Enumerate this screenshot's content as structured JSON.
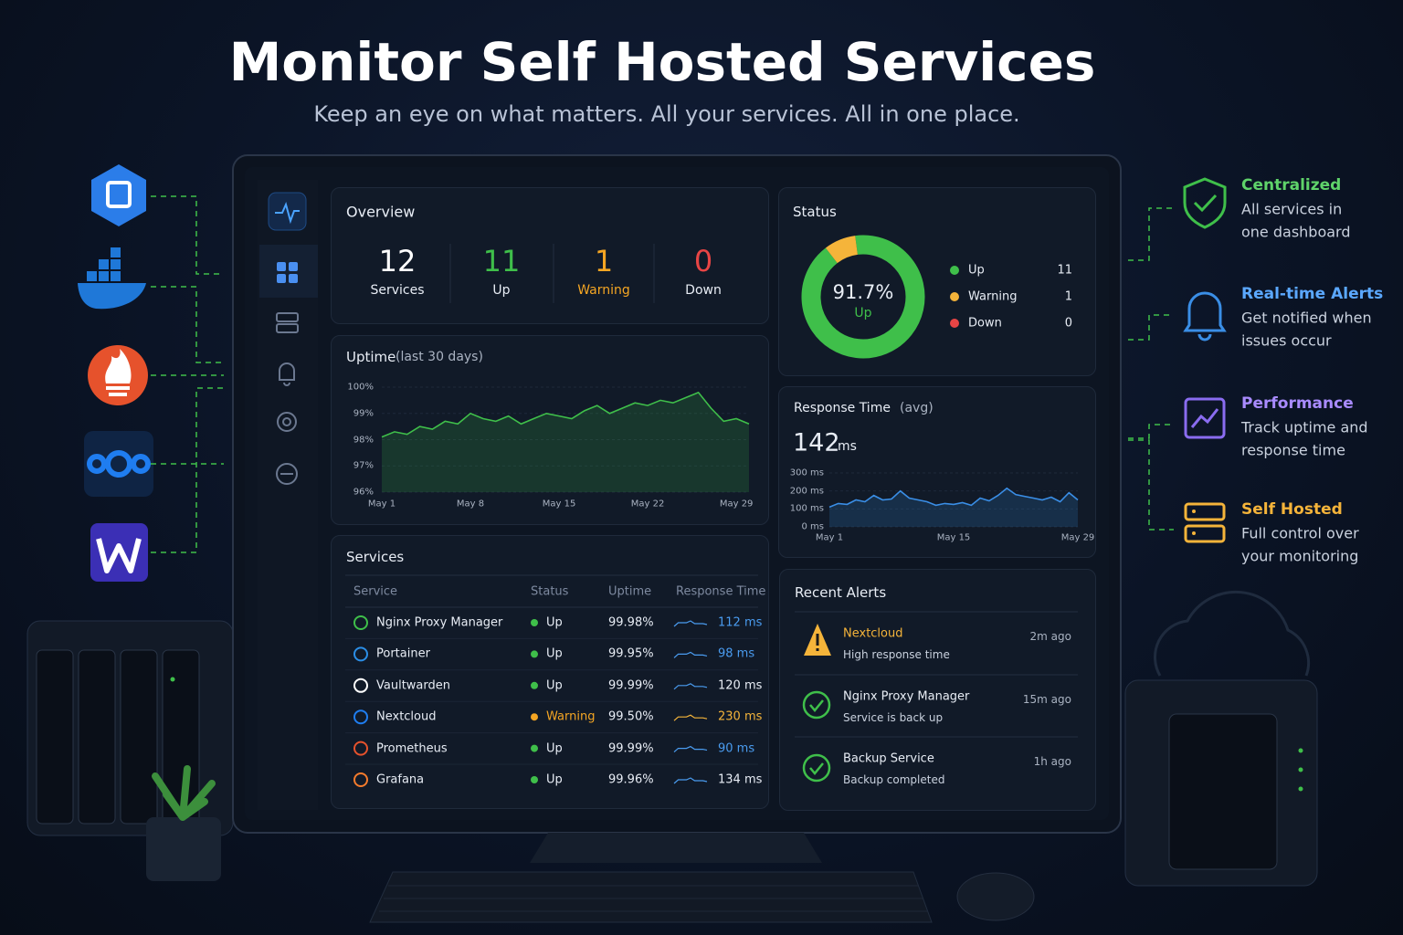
{
  "header": {
    "title": "Monitor Self Hosted Services",
    "subtitle": "Keep an eye on what matters. All your services. All in one place."
  },
  "features": [
    {
      "title": "Centralized",
      "line1": "All services in",
      "line2": "one dashboard",
      "color": "#5fd36a"
    },
    {
      "title": "Real-time Alerts",
      "line1": "Get notified when",
      "line2": "issues occur",
      "color": "#5ba8ff"
    },
    {
      "title": "Performance",
      "line1": "Track uptime and",
      "line2": "response time",
      "color": "#a98bff"
    },
    {
      "title": "Self Hosted",
      "line1": "Full control over",
      "line2": "your monitoring",
      "color": "#f5b43a"
    }
  ],
  "overview": {
    "title": "Overview",
    "stats": [
      {
        "value": 12,
        "label": "Services",
        "color": "#ffffff"
      },
      {
        "value": 11,
        "label": "Up",
        "color": "#3fbf4a"
      },
      {
        "value": 1,
        "label": "Warning",
        "color": "#f5a623"
      },
      {
        "value": 0,
        "label": "Down",
        "color": "#e84545"
      }
    ]
  },
  "status": {
    "title": "Status",
    "center_label": "91.7%",
    "center_sub": "Up",
    "items": [
      {
        "name": "Up",
        "value": 11,
        "color": "#3fbf4a"
      },
      {
        "name": "Warning",
        "value": 1,
        "color": "#f5b43a"
      },
      {
        "name": "Down",
        "value": 0,
        "color": "#e84545"
      }
    ]
  },
  "uptime": {
    "type": "line",
    "title": "Uptime",
    "subtitle": "(last 30 days)",
    "color": "#3fbf4a",
    "categories": [
      "May 1",
      null,
      null,
      null,
      null,
      null,
      null,
      "May 8",
      null,
      null,
      null,
      null,
      null,
      null,
      "May 15",
      null,
      null,
      null,
      null,
      null,
      null,
      "May 22",
      null,
      null,
      null,
      null,
      null,
      null,
      "May 29",
      null
    ],
    "values": [
      98.1,
      98.3,
      98.2,
      98.5,
      98.4,
      98.7,
      98.6,
      99.0,
      98.8,
      98.7,
      98.9,
      98.6,
      98.8,
      99.0,
      98.9,
      98.8,
      99.1,
      99.3,
      99.0,
      99.2,
      99.4,
      99.3,
      99.5,
      99.4,
      99.6,
      99.8,
      99.2,
      98.7,
      98.8,
      98.6
    ],
    "ylim": [
      96,
      100
    ],
    "yticks": [
      {
        "value": 96,
        "label": "96%"
      },
      {
        "value": 97,
        "label": "97%"
      },
      {
        "value": 98,
        "label": "98%"
      },
      {
        "value": 99,
        "label": "99%"
      },
      {
        "value": 100,
        "label": "100%"
      }
    ]
  },
  "response": {
    "type": "line",
    "title": "Response Time",
    "subtitle": "(avg)",
    "headline": 142,
    "unit": "ms",
    "color": "#3a8ee6",
    "categories": [
      "May 1",
      null,
      null,
      null,
      null,
      null,
      null,
      null,
      null,
      null,
      null,
      null,
      null,
      null,
      "May 15",
      null,
      null,
      null,
      null,
      null,
      null,
      null,
      null,
      null,
      null,
      null,
      null,
      null,
      "May 29"
    ],
    "values": [
      110,
      130,
      125,
      150,
      140,
      175,
      150,
      155,
      200,
      160,
      150,
      140,
      120,
      130,
      125,
      135,
      120,
      160,
      145,
      175,
      215,
      180,
      170,
      160,
      150,
      165,
      140,
      190,
      150
    ],
    "ylim": [
      0,
      300
    ],
    "yticks": [
      {
        "value": 0,
        "label": "0 ms"
      },
      {
        "value": 100,
        "label": "100 ms"
      },
      {
        "value": 200,
        "label": "200 ms"
      },
      {
        "value": 300,
        "label": "300 ms"
      }
    ]
  },
  "services": {
    "title": "Services",
    "headers": [
      "Service",
      "Status",
      "Uptime",
      "Response Time"
    ],
    "rows": [
      {
        "name": "Nginx Proxy Manager",
        "status": "Up",
        "uptime": "99.98%",
        "response": "112 ms",
        "status_color": "#3fbf4a",
        "response_color": "#4a9cf0"
      },
      {
        "name": "Portainer",
        "status": "Up",
        "uptime": "99.95%",
        "response": "98 ms",
        "status_color": "#3fbf4a",
        "response_color": "#4a9cf0"
      },
      {
        "name": "Vaultwarden",
        "status": "Up",
        "uptime": "99.99%",
        "response": "120 ms",
        "status_color": "#3fbf4a",
        "response_color": "#e8edf5"
      },
      {
        "name": "Nextcloud",
        "status": "Warning",
        "uptime": "99.50%",
        "response": "230 ms",
        "status_color": "#f5a623",
        "response_color": "#f5b43a"
      },
      {
        "name": "Prometheus",
        "status": "Up",
        "uptime": "99.99%",
        "response": "90 ms",
        "status_color": "#3fbf4a",
        "response_color": "#4a9cf0"
      },
      {
        "name": "Grafana",
        "status": "Up",
        "uptime": "99.96%",
        "response": "134 ms",
        "status_color": "#3fbf4a",
        "response_color": "#e8edf5"
      }
    ]
  },
  "alerts": {
    "title": "Recent Alerts",
    "items": [
      {
        "title": "Nextcloud",
        "message": "High response time",
        "time": "2m ago",
        "color": "#f5b43a"
      },
      {
        "title": "Nginx Proxy Manager",
        "message": "Service is back up",
        "time": "15m ago",
        "color": "#e8edf5"
      },
      {
        "title": "Backup Service",
        "message": "Backup completed",
        "time": "1h ago",
        "color": "#e8edf5"
      }
    ]
  }
}
